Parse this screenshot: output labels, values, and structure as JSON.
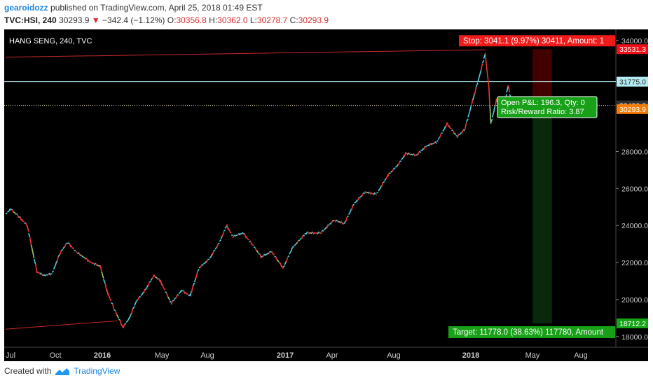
{
  "header": {
    "author": "gearoidozz",
    "published_text": "published on TradingView.com, April 25, 2018 01:49 EST"
  },
  "ohlc": {
    "symbol": "TVC:HSI, 240",
    "last": "30293.9",
    "arrow": "▼",
    "change": "−342.4 (−1.12%)",
    "o_label": "O:",
    "o": "30356.8",
    "h_label": "H:",
    "h": "30362.0",
    "l_label": "L:",
    "l": "30278.7",
    "c_label": "C:",
    "c": "30293.9"
  },
  "chart_data": {
    "type": "line",
    "title": "HANG SENG, 240, TVC",
    "x_ticks": [
      "Jul",
      "Oct",
      "2016",
      "May",
      "Aug",
      "2017",
      "Apr",
      "Aug",
      "2018",
      "May",
      "Aug"
    ],
    "y_ticks": [
      34000,
      28000,
      26000,
      24000,
      22000,
      20000,
      18000
    ],
    "ylim": [
      17500,
      34600
    ],
    "series": [
      {
        "values": [
          {
            "x": "2015-07-01",
            "y": 24600
          },
          {
            "x": "2015-07-10",
            "y": 24900
          },
          {
            "x": "2015-07-25",
            "y": 24500
          },
          {
            "x": "2015-08-10",
            "y": 24000
          },
          {
            "x": "2015-08-20",
            "y": 22600
          },
          {
            "x": "2015-08-28",
            "y": 21500
          },
          {
            "x": "2015-09-10",
            "y": 21300
          },
          {
            "x": "2015-09-25",
            "y": 21400
          },
          {
            "x": "2015-10-10",
            "y": 22500
          },
          {
            "x": "2015-10-25",
            "y": 23100
          },
          {
            "x": "2015-11-10",
            "y": 22600
          },
          {
            "x": "2015-11-25",
            "y": 22300
          },
          {
            "x": "2015-12-10",
            "y": 22000
          },
          {
            "x": "2015-12-28",
            "y": 21800
          },
          {
            "x": "2016-01-10",
            "y": 20500
          },
          {
            "x": "2016-01-25",
            "y": 19500
          },
          {
            "x": "2016-02-12",
            "y": 18500
          },
          {
            "x": "2016-02-25",
            "y": 19000
          },
          {
            "x": "2016-03-10",
            "y": 19900
          },
          {
            "x": "2016-03-28",
            "y": 20500
          },
          {
            "x": "2016-04-15",
            "y": 21300
          },
          {
            "x": "2016-04-28",
            "y": 21000
          },
          {
            "x": "2016-05-20",
            "y": 19800
          },
          {
            "x": "2016-06-10",
            "y": 20500
          },
          {
            "x": "2016-06-27",
            "y": 20200
          },
          {
            "x": "2016-07-15",
            "y": 21700
          },
          {
            "x": "2016-08-05",
            "y": 22200
          },
          {
            "x": "2016-08-25",
            "y": 23100
          },
          {
            "x": "2016-09-08",
            "y": 24000
          },
          {
            "x": "2016-09-20",
            "y": 23400
          },
          {
            "x": "2016-10-10",
            "y": 23600
          },
          {
            "x": "2016-10-28",
            "y": 23000
          },
          {
            "x": "2016-11-15",
            "y": 22300
          },
          {
            "x": "2016-12-05",
            "y": 22600
          },
          {
            "x": "2016-12-28",
            "y": 21700
          },
          {
            "x": "2017-01-15",
            "y": 22800
          },
          {
            "x": "2017-02-10",
            "y": 23600
          },
          {
            "x": "2017-03-10",
            "y": 23600
          },
          {
            "x": "2017-04-05",
            "y": 24300
          },
          {
            "x": "2017-04-25",
            "y": 24100
          },
          {
            "x": "2017-05-15",
            "y": 25200
          },
          {
            "x": "2017-06-05",
            "y": 25800
          },
          {
            "x": "2017-06-28",
            "y": 25700
          },
          {
            "x": "2017-07-20",
            "y": 26700
          },
          {
            "x": "2017-08-10",
            "y": 27300
          },
          {
            "x": "2017-08-25",
            "y": 27900
          },
          {
            "x": "2017-09-15",
            "y": 27800
          },
          {
            "x": "2017-10-05",
            "y": 28300
          },
          {
            "x": "2017-10-25",
            "y": 28500
          },
          {
            "x": "2017-11-15",
            "y": 29500
          },
          {
            "x": "2017-12-05",
            "y": 28800
          },
          {
            "x": "2017-12-20",
            "y": 29200
          },
          {
            "x": "2018-01-05",
            "y": 30800
          },
          {
            "x": "2018-01-18",
            "y": 32100
          },
          {
            "x": "2018-01-29",
            "y": 33300
          },
          {
            "x": "2018-02-05",
            "y": 31500
          },
          {
            "x": "2018-02-09",
            "y": 29500
          },
          {
            "x": "2018-02-20",
            "y": 30800
          },
          {
            "x": "2018-03-05",
            "y": 30300
          },
          {
            "x": "2018-03-15",
            "y": 31600
          },
          {
            "x": "2018-03-23",
            "y": 30300
          },
          {
            "x": "2018-04-05",
            "y": 30100
          },
          {
            "x": "2018-04-18",
            "y": 30600
          },
          {
            "x": "2018-04-25",
            "y": 30293.9
          }
        ]
      }
    ],
    "price_labels": [
      {
        "value": 33531.3,
        "text": "33531.3",
        "color": "#ef0f17",
        "text_color": "#ffffff"
      },
      {
        "value": 31775.0,
        "text": "31775.0",
        "color": "#b2ebf2",
        "text_color": "#333333"
      },
      {
        "value": 30490.2,
        "text": "30490.2",
        "color": "#303030",
        "text_color": "#ffffff"
      },
      {
        "value": 30293.9,
        "text": "30293.9",
        "color": "#f57c00",
        "text_color": "#ffffff"
      },
      {
        "value": 18712.2,
        "text": "18712.2",
        "color": "#16a516",
        "text_color": "#ffffff"
      }
    ],
    "hlines": [
      {
        "value": 31775.0,
        "color": "#b2ebf2",
        "style": "solid"
      },
      {
        "value": 30490.2,
        "color": "#e0d8a0",
        "style": "dotted"
      }
    ],
    "trendlines": [
      {
        "x1": "2015-07-01",
        "y1": 33100,
        "x2": "2018-01-30",
        "y2": 33500,
        "color": "#c62828"
      },
      {
        "x1": "2015-07-01",
        "y1": 18400,
        "x2": "2016-02-01",
        "y2": 18850,
        "color": "#c62828"
      }
    ],
    "position": {
      "entry": 30490.2,
      "stop": 33531.3,
      "target": 18712.2,
      "x_start": "2018-05-01",
      "x_end": "2018-06-07",
      "stop_label": "Stop: 3041.1 (9.97%) 30411, Amount: 1",
      "target_label": "Target: 11778.0 (38.63%) 117780, Amount",
      "pnl_line1": "Open P&L: 196.3, Qty: 0",
      "pnl_line2": "Risk/Reward Ratio: 3.87"
    },
    "colors": {
      "up": "#4dd0e1",
      "down": "#e53935",
      "mid": "#9ccc65",
      "bg": "#000000"
    }
  },
  "footer": {
    "created_with": "Created with",
    "brand": "TradingView"
  }
}
